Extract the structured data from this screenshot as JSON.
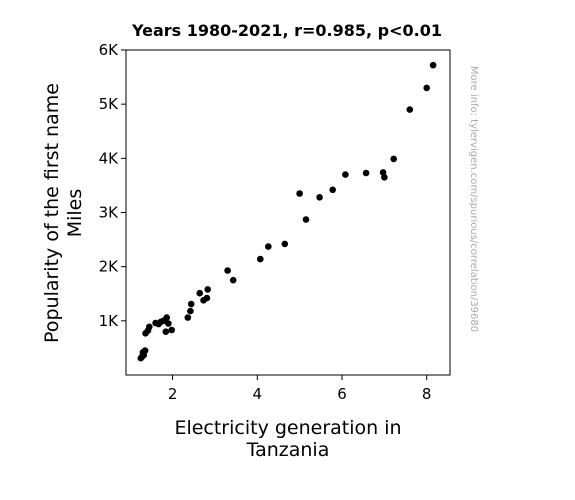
{
  "chart_data": {
    "type": "scatter",
    "title": "Years 1980-2021, r=0.985, p<0.01",
    "xlabel": [
      "Electricity generation in",
      "Tanzania"
    ],
    "ylabel": [
      "Popularity of the first name",
      "Miles"
    ],
    "xlim": [
      0.9,
      8.55
    ],
    "ylim": [
      0,
      6000
    ],
    "x_ticks": [
      2,
      4,
      6,
      8
    ],
    "x_tick_labels": [
      "2",
      "4",
      "6",
      "8"
    ],
    "y_ticks": [
      1000,
      2000,
      3000,
      4000,
      5000,
      6000
    ],
    "y_tick_labels": [
      "1K",
      "2K",
      "3K",
      "4K",
      "5K",
      "6K"
    ],
    "grid": false,
    "marker_color": "#000000",
    "watermark": "More info: tylervigen.com/spurious/correlation/39680",
    "points": [
      {
        "x": 1.25,
        "y": 310
      },
      {
        "x": 1.28,
        "y": 340
      },
      {
        "x": 1.3,
        "y": 420
      },
      {
        "x": 1.32,
        "y": 370
      },
      {
        "x": 1.35,
        "y": 450
      },
      {
        "x": 1.36,
        "y": 770
      },
      {
        "x": 1.42,
        "y": 820
      },
      {
        "x": 1.45,
        "y": 890
      },
      {
        "x": 1.6,
        "y": 960
      },
      {
        "x": 1.67,
        "y": 940
      },
      {
        "x": 1.72,
        "y": 980
      },
      {
        "x": 1.78,
        "y": 1000
      },
      {
        "x": 1.84,
        "y": 800
      },
      {
        "x": 1.86,
        "y": 1060
      },
      {
        "x": 1.9,
        "y": 950
      },
      {
        "x": 1.98,
        "y": 830
      },
      {
        "x": 2.36,
        "y": 1060
      },
      {
        "x": 2.42,
        "y": 1180
      },
      {
        "x": 2.44,
        "y": 1310
      },
      {
        "x": 2.64,
        "y": 1510
      },
      {
        "x": 2.73,
        "y": 1380
      },
      {
        "x": 2.81,
        "y": 1420
      },
      {
        "x": 2.83,
        "y": 1580
      },
      {
        "x": 3.3,
        "y": 1930
      },
      {
        "x": 3.43,
        "y": 1750
      },
      {
        "x": 4.07,
        "y": 2140
      },
      {
        "x": 4.26,
        "y": 2370
      },
      {
        "x": 4.65,
        "y": 2420
      },
      {
        "x": 5.0,
        "y": 3350
      },
      {
        "x": 5.15,
        "y": 2870
      },
      {
        "x": 5.47,
        "y": 3280
      },
      {
        "x": 5.78,
        "y": 3420
      },
      {
        "x": 6.08,
        "y": 3700
      },
      {
        "x": 6.57,
        "y": 3730
      },
      {
        "x": 6.97,
        "y": 3740
      },
      {
        "x": 7.0,
        "y": 3650
      },
      {
        "x": 7.22,
        "y": 3990
      },
      {
        "x": 7.6,
        "y": 4900
      },
      {
        "x": 8.0,
        "y": 5300
      },
      {
        "x": 8.15,
        "y": 5720
      }
    ]
  }
}
